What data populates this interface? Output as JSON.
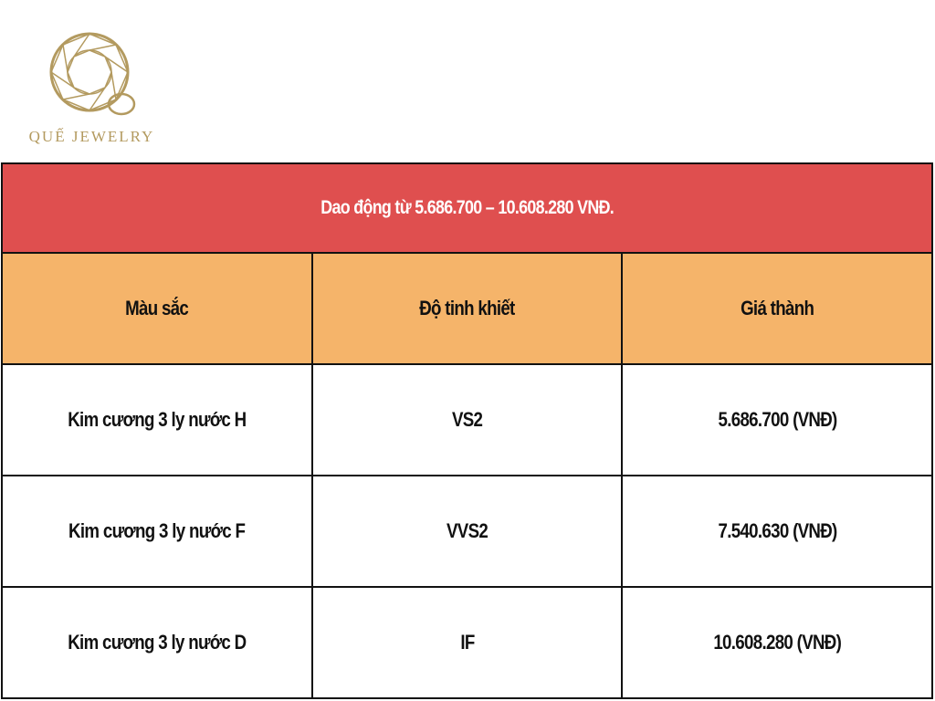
{
  "logo": {
    "text": "QUẾ JEWELRY",
    "color": "#b39a5f"
  },
  "table": {
    "title": "Dao động từ 5.686.700 – 10.608.280 VNĐ.",
    "headers": [
      "Màu sắc",
      "Độ tinh khiết",
      "Giá thành"
    ],
    "rows": [
      [
        "Kim cương 3 ly nước H",
        "VS2",
        "5.686.700 (VNĐ)"
      ],
      [
        "Kim cương 3 ly nước F",
        "VVS2",
        "7.540.630 (VNĐ)"
      ],
      [
        "Kim cương 3 ly nước D",
        "IF",
        "10.608.280 (VNĐ)"
      ]
    ],
    "colors": {
      "title_bg": "#df4f4f",
      "header_bg": "#f5b46a"
    }
  }
}
